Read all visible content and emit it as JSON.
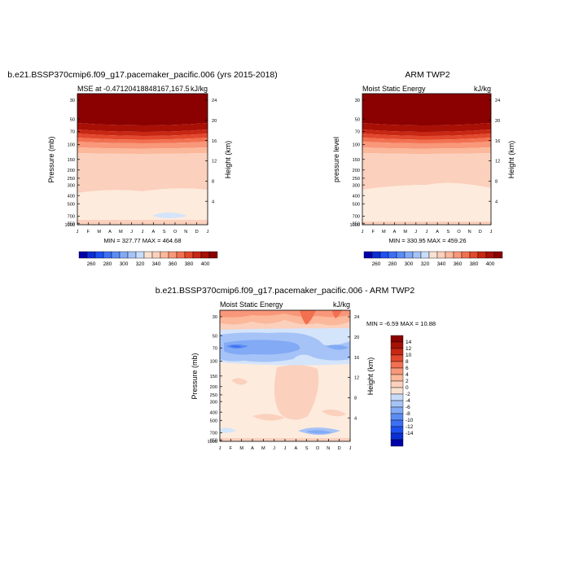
{
  "palette": [
    "#0000aa",
    "#0a2fd4",
    "#1e50f0",
    "#3c6ff5",
    "#5a8cf5",
    "#82aaf5",
    "#a5c3f7",
    "#c8dcfa",
    "#f9e1d2",
    "#fbd0bc",
    "#fbb89b",
    "#f8977a",
    "#f27050",
    "#e2482d",
    "#c72713",
    "#a80f05",
    "#8b0000"
  ],
  "charts": [
    {
      "title": "b.e21.BSSP370cmip6.f09_g17.pacemaker_pacific.006 (yrs 2015-2018)",
      "left_label": "MSE at -0.47120418848167,167.5",
      "right_label": "kJ/kg",
      "ylabel": "Pressure (mb)",
      "y2label": "Height (km)",
      "minmax": "MIN = 327.77 MAX = 464.68"
    },
    {
      "title": "ARM TWP2",
      "left_label": "Moist Static Energy",
      "right_label": "kJ/kg",
      "ylabel": "pressure level",
      "y2label": "Height (km)",
      "minmax": "MIN = 330.95 MAX = 459.26"
    },
    {
      "title": "b.e21.BSSP370cmip6.f09_g17.pacemaker_pacific.006 - ARM TWP2",
      "left_label": "Moist Static Energy",
      "right_label": "kJ/kg",
      "ylabel": "Pressure (mb)",
      "y2label": "Height (km)",
      "minmax": "MIN =  -6.59 MAX =  10.88"
    }
  ],
  "chart_data": [
    {
      "type": "heatmap",
      "title": "b.e21.BSSP370cmip6.f09_g17.pacemaker_pacific.006 (yrs 2015-2018)",
      "ylabel": "Pressure (mb)",
      "y2label": "Height (km)",
      "units": "kJ/kg",
      "x": [
        "J",
        "F",
        "M",
        "A",
        "M",
        "J",
        "J",
        "A",
        "S",
        "O",
        "N",
        "D",
        "J"
      ],
      "pressure_ticks": [
        30,
        50,
        70,
        100,
        150,
        200,
        250,
        300,
        400,
        500,
        700,
        850,
        1000
      ],
      "height_ticks": [
        4,
        8,
        12,
        16,
        20,
        24
      ],
      "min": 327.77,
      "max": 464.68,
      "colorbar_ticks": [
        260,
        280,
        300,
        320,
        340,
        360,
        380,
        400
      ],
      "contour_levels": [
        260,
        270,
        280,
        290,
        300,
        310,
        320,
        330,
        340,
        350,
        360,
        370,
        380,
        390,
        400
      ]
    },
    {
      "type": "heatmap",
      "title": "ARM TWP2",
      "ylabel": "pressure level",
      "y2label": "Height (km)",
      "units": "kJ/kg",
      "x": [
        "J",
        "F",
        "M",
        "A",
        "M",
        "J",
        "J",
        "A",
        "S",
        "O",
        "N",
        "D",
        "J"
      ],
      "pressure_ticks": [
        30,
        50,
        70,
        100,
        150,
        200,
        250,
        300,
        400,
        500,
        700,
        850,
        1000
      ],
      "height_ticks": [
        4,
        8,
        12,
        16,
        20,
        24
      ],
      "min": 330.95,
      "max": 459.26,
      "colorbar_ticks": [
        260,
        280,
        300,
        320,
        340,
        360,
        380,
        400
      ],
      "contour_levels": [
        260,
        270,
        280,
        290,
        300,
        310,
        320,
        330,
        340,
        350,
        360,
        370,
        380,
        390,
        400
      ]
    },
    {
      "type": "heatmap",
      "title": "b.e21.BSSP370cmip6.f09_g17.pacemaker_pacific.006 - ARM TWP2",
      "ylabel": "Pressure (mb)",
      "y2label": "Height (km)",
      "units": "kJ/kg",
      "x": [
        "J",
        "F",
        "M",
        "A",
        "M",
        "J",
        "J",
        "A",
        "S",
        "O",
        "N",
        "D",
        "J"
      ],
      "pressure_ticks": [
        30,
        50,
        70,
        100,
        150,
        200,
        250,
        300,
        400,
        500,
        700,
        850,
        1000
      ],
      "height_ticks": [
        4,
        8,
        12,
        16,
        20,
        24
      ],
      "min": -6.59,
      "max": 10.88,
      "colorbar_ticks": [
        14,
        12,
        10,
        8,
        6,
        4,
        2,
        0,
        -2,
        -4,
        -6,
        -8,
        -10,
        -12,
        -14
      ],
      "contour_levels": [
        -15,
        -13,
        -11,
        -9,
        -7,
        -5,
        -3,
        -1,
        1,
        3,
        5,
        7,
        9,
        11,
        13,
        15
      ]
    }
  ]
}
